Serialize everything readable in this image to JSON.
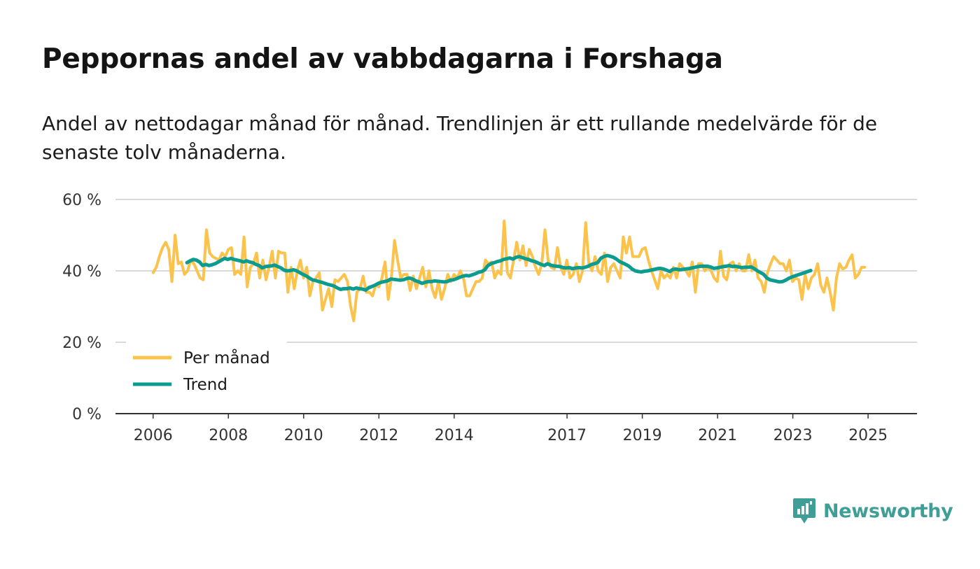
{
  "title": "Peppornas andel av vabbdagarna i Forshaga",
  "subtitle": "Andel av nettodagar månad för månad. Trendlinjen är ett rullande medelvärde för de senaste tolv månaderna.",
  "brand": {
    "name": "Newsworthy",
    "color": "#3f9e96",
    "icon": "newsworthy-logo-icon"
  },
  "colors": {
    "monthly": "#fbc34c",
    "trend": "#0b9b8f",
    "grid": "#d9d9d9",
    "axis": "#333333"
  },
  "chart_data": {
    "type": "line",
    "title": "Peppornas andel av vabbdagarna i Forshaga",
    "xlabel": "",
    "ylabel": "",
    "ylim": [
      0,
      60
    ],
    "y_ticks": [
      {
        "value": 0,
        "label": "0 %"
      },
      {
        "value": 20,
        "label": "20 %"
      },
      {
        "value": 40,
        "label": "40 %"
      },
      {
        "value": 60,
        "label": "60 %"
      }
    ],
    "x_ticks": [
      {
        "value": 2006,
        "label": "2006"
      },
      {
        "value": 2008,
        "label": "2008"
      },
      {
        "value": 2010,
        "label": "2010"
      },
      {
        "value": 2012,
        "label": "2012"
      },
      {
        "value": 2014,
        "label": "2014"
      },
      {
        "value": 2017,
        "label": "2017"
      },
      {
        "value": 2019,
        "label": "2019"
      },
      {
        "value": 2021,
        "label": "2021"
      },
      {
        "value": 2023,
        "label": "2023"
      },
      {
        "value": 2025,
        "label": "2025"
      }
    ],
    "xlim": [
      2005.0,
      2026.3
    ],
    "legend": {
      "position": "bottom-left",
      "entries": [
        "Per månad",
        "Trend"
      ]
    },
    "series": [
      {
        "name": "Per månad",
        "x_start": 2006.0,
        "step": 0.0833,
        "values": [
          39.5,
          41,
          44,
          46.5,
          48,
          46,
          37,
          50,
          42,
          42.5,
          39,
          40,
          43,
          42,
          40,
          38,
          37.5,
          51.5,
          45,
          44,
          43.5,
          43,
          45,
          44,
          46,
          46.5,
          39,
          40,
          39,
          49.5,
          35.5,
          41,
          42,
          45,
          38,
          43,
          37.5,
          41,
          45.5,
          38,
          45.5,
          45,
          45,
          34,
          41,
          35,
          40,
          43,
          38,
          41,
          33,
          37,
          38,
          39.5,
          29,
          32,
          35,
          30,
          37.5,
          37,
          38,
          39,
          37,
          30,
          26,
          34,
          35,
          38.5,
          34,
          34,
          33,
          36,
          35.5,
          38,
          42.5,
          32,
          38,
          48.5,
          43,
          38,
          39,
          39,
          34.5,
          38.5,
          35,
          38,
          41,
          35.5,
          40,
          35,
          32.5,
          37,
          32,
          35,
          39,
          37,
          39,
          38,
          40,
          38,
          33,
          33,
          35,
          37,
          37,
          38,
          43,
          42,
          42.5,
          38,
          40,
          39,
          54,
          39.5,
          38,
          43,
          48,
          43,
          47,
          41.5,
          46,
          44,
          41,
          39,
          42,
          51.5,
          43,
          41,
          40.5,
          46.5,
          41,
          39,
          43,
          38,
          39,
          42,
          37,
          40,
          53.5,
          42,
          40,
          44,
          40,
          39,
          45,
          37,
          41,
          42,
          40,
          38,
          49.5,
          45,
          49.5,
          44,
          44,
          44,
          46,
          46.5,
          43,
          40,
          37.5,
          35,
          40,
          38,
          39,
          38,
          41,
          38,
          42,
          41,
          40,
          38.5,
          42.5,
          34,
          42,
          42,
          40,
          41,
          40,
          38,
          37,
          45.5,
          38.5,
          37.5,
          42,
          42.5,
          40,
          42,
          40,
          40,
          44.5,
          40,
          43,
          38,
          37,
          34,
          39.5,
          42,
          44,
          43,
          42,
          42,
          40,
          43,
          37,
          38,
          37.5,
          32,
          39,
          35,
          38,
          39,
          42,
          36,
          34,
          38,
          34,
          29,
          38,
          42,
          40.5,
          41,
          43,
          44.5,
          38,
          39,
          41,
          41
        ]
      },
      {
        "name": "Trend",
        "x_start": 2006.9,
        "step": 0.0833,
        "values": [
          42.3,
          42.8,
          43.2,
          43,
          42.5,
          41.5,
          41.8,
          41.5,
          41.7,
          42,
          42.5,
          43,
          43.5,
          43.2,
          43.5,
          43.2,
          43,
          42.8,
          42.5,
          42.8,
          42.5,
          42.3,
          41.8,
          41.5,
          40.8,
          41.2,
          41.3,
          41.4,
          41.6,
          41.2,
          40.8,
          40.2,
          40,
          40.1,
          40.3,
          40,
          39.5,
          39,
          38.6,
          38,
          37.5,
          37.3,
          37,
          36.8,
          36.5,
          36.2,
          36,
          35.7,
          35.2,
          34.8,
          35,
          35,
          35.2,
          34.9,
          35.2,
          35,
          34.9,
          34.6,
          35.3,
          35.6,
          36,
          36.5,
          36.8,
          37,
          37.2,
          37.7,
          37.6,
          37.5,
          37.4,
          37.5,
          37.8,
          38,
          37.7,
          37.2,
          36.9,
          36.5,
          36.8,
          37,
          37,
          37.2,
          37.1,
          37,
          36.9,
          37,
          37.4,
          37.5,
          37.8,
          38.2,
          38.5,
          38.7,
          38.6,
          38.9,
          39.2,
          39.6,
          39.8,
          40.3,
          41.5,
          42,
          42.3,
          42.6,
          42.8,
          43.2,
          43.4,
          43.6,
          43.3,
          43.8,
          44,
          43.7,
          43.4,
          43.2,
          42.8,
          42.6,
          42.2,
          41.8,
          41.5,
          42,
          41.6,
          41.4,
          41.3,
          41.2,
          40.9,
          40.8,
          40.9,
          40.6,
          40.8,
          40.9,
          40.8,
          41,
          41.3,
          41.8,
          42,
          42.3,
          43.5,
          44,
          44.3,
          44.1,
          43.8,
          43.3,
          42.6,
          42.2,
          41.8,
          41.3,
          40.5,
          40,
          39.8,
          39.7,
          39.9,
          40,
          40.2,
          40.4,
          40.6,
          40.7,
          40.5,
          40.2,
          39.8,
          40.4,
          40.5,
          40.3,
          40.4,
          40.5,
          40.6,
          40.8,
          41,
          41.2,
          41.3,
          41.3,
          41.3,
          41.1,
          40.7,
          40.8,
          41,
          41.2,
          41.3,
          41.5,
          41.2,
          41.3,
          41.1,
          40.9,
          41,
          41,
          41.1,
          40.6,
          40,
          39.5,
          39,
          38,
          37.5,
          37.3,
          37.1,
          36.9,
          37,
          37.4,
          37.9,
          38.3,
          38.6,
          38.9,
          39.2,
          39.5,
          39.8,
          40.1
        ]
      }
    ]
  }
}
